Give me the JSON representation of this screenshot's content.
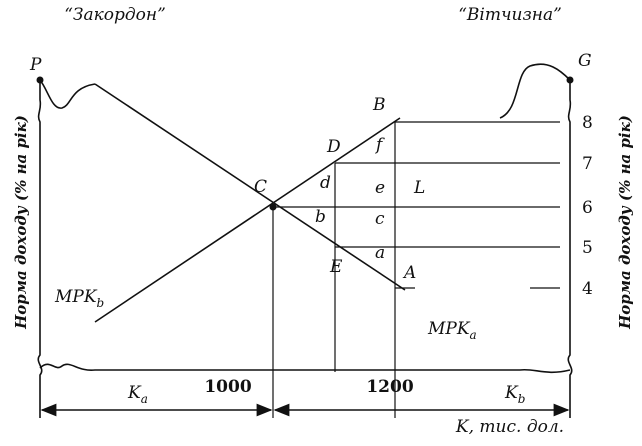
{
  "header": {
    "left": "“Закордон”",
    "right": "“Вітчизна”"
  },
  "axis": {
    "left_label": "Норма доходу (% на рік)",
    "right_label": "Норма доходу (% на рік)",
    "x_label": "K, тис. дол.",
    "right_ticks": [
      8,
      7,
      6,
      5,
      4
    ],
    "bottom": {
      "ka": {
        "text": "K",
        "sub": "a"
      },
      "kb": {
        "text": "K",
        "sub": "b"
      },
      "mark1": 1000,
      "mark2": 1200
    }
  },
  "points": {
    "P": "P",
    "G": "G",
    "B": "B",
    "D": "D",
    "C": "C",
    "A": "A",
    "E": "E",
    "L": "L"
  },
  "regions": {
    "a": "a",
    "b": "b",
    "c": "c",
    "d": "d",
    "e": "e",
    "f": "f"
  },
  "curves": {
    "mpkb": {
      "text": "MPK",
      "sub": "b"
    },
    "mpka": {
      "text": "MPK",
      "sub": "a"
    }
  }
}
